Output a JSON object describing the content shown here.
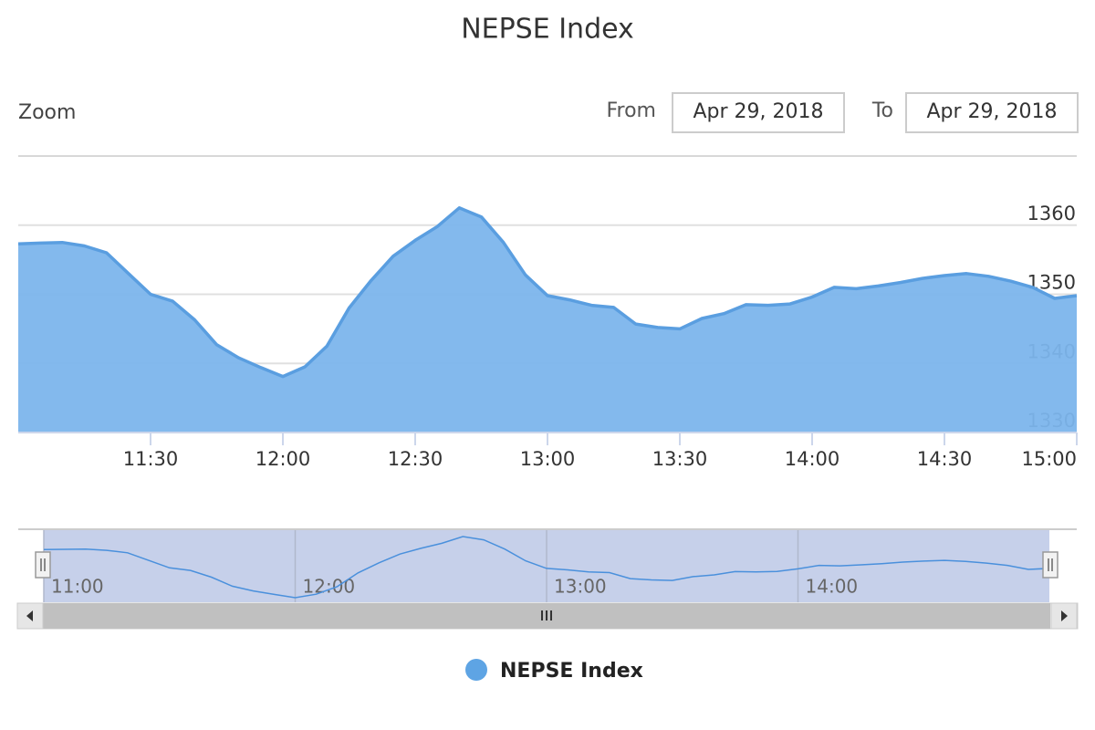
{
  "range_selector": {
    "zoom_label": "Zoom",
    "from_label": "From",
    "from_value": "Apr 29, 2018",
    "to_label": "To",
    "to_value": "Apr 29, 2018"
  },
  "chart_data": {
    "type": "area",
    "title": "NEPSE Index",
    "x": [
      "11:00",
      "11:05",
      "11:10",
      "11:15",
      "11:20",
      "11:25",
      "11:30",
      "11:35",
      "11:40",
      "11:45",
      "11:50",
      "11:55",
      "12:00",
      "12:05",
      "12:10",
      "12:15",
      "12:20",
      "12:25",
      "12:30",
      "12:35",
      "12:40",
      "12:45",
      "12:50",
      "12:55",
      "13:00",
      "13:05",
      "13:10",
      "13:15",
      "13:20",
      "13:25",
      "13:30",
      "13:35",
      "13:40",
      "13:45",
      "13:50",
      "13:55",
      "14:00",
      "14:05",
      "14:10",
      "14:15",
      "14:20",
      "14:25",
      "14:30",
      "14:35",
      "14:40",
      "14:45",
      "14:50",
      "14:55",
      "15:00"
    ],
    "series": [
      {
        "name": "NEPSE Index",
        "color": "#7cb5ec",
        "values": [
          1357.3,
          1357.4,
          1357.5,
          1357.0,
          1356.0,
          1353.0,
          1350.0,
          1349.0,
          1346.3,
          1342.7,
          1340.8,
          1339.4,
          1338.1,
          1339.5,
          1342.5,
          1348.0,
          1352.0,
          1355.5,
          1357.8,
          1359.8,
          1362.5,
          1361.2,
          1357.5,
          1352.8,
          1349.8,
          1349.2,
          1348.4,
          1348.1,
          1345.7,
          1345.2,
          1345.0,
          1346.5,
          1347.2,
          1348.5,
          1348.4,
          1348.6,
          1349.6,
          1351.0,
          1350.8,
          1351.2,
          1351.7,
          1352.3,
          1352.7,
          1353.0,
          1352.6,
          1351.9,
          1351.0,
          1349.4,
          1349.8
        ]
      }
    ],
    "ylim": [
      1330,
      1370
    ],
    "yticks": [
      1330,
      1340,
      1350,
      1360
    ],
    "xticks": [
      "11:30",
      "12:00",
      "12:30",
      "13:00",
      "13:30",
      "14:00",
      "14:30",
      "15:00"
    ],
    "navigator_xticks": [
      "11:00",
      "12:00",
      "13:00",
      "14:00"
    ],
    "grid": true,
    "legend": "bottom"
  }
}
